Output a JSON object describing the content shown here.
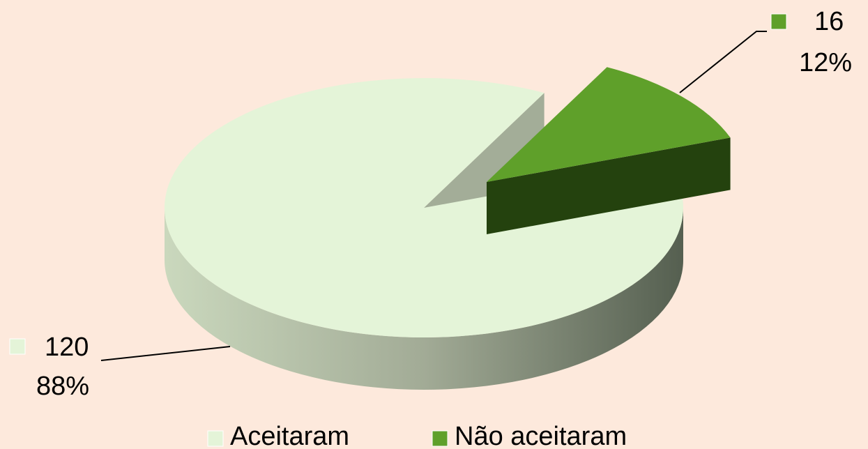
{
  "chart_data": {
    "type": "pie",
    "categories": [
      "Aceitaram",
      "Não aceitaram"
    ],
    "values": [
      120,
      16
    ],
    "percent_labels": [
      "88%",
      "12%"
    ],
    "colors": [
      "#e4f4d8",
      "#5fa02a"
    ],
    "legend": "bottom"
  }
}
